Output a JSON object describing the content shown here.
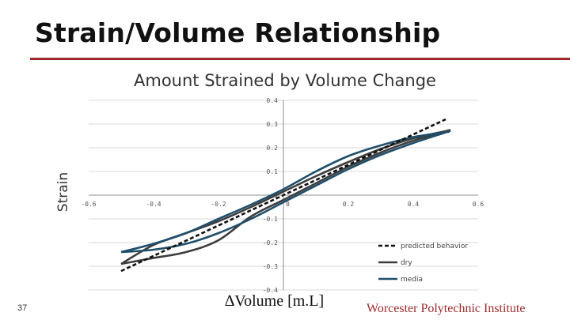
{
  "slide": {
    "title": "Strain/Volume Relationship",
    "page_number": "37",
    "footer": "Worcester Polytechnic Institute",
    "accent_color": "#9e2a2b"
  },
  "chart_data": {
    "type": "line",
    "title": "Amount Strained by Volume Change",
    "xlabel": "∆Volume [m.L]",
    "ylabel": "Strain",
    "xlim": [
      -0.6,
      0.6
    ],
    "ylim": [
      -0.4,
      0.4
    ],
    "x_ticks": [
      "-0.6",
      "-0.4",
      "-0.2",
      "0",
      "0.2",
      "0.4",
      "0.6"
    ],
    "y_ticks": [
      "0.4",
      "0.3",
      "0.2",
      "0.1",
      "0",
      "-0.1",
      "-0.2",
      "-0.3",
      "-0.4"
    ],
    "grid": "horizontal",
    "legend_position": "bottom-right",
    "series": [
      {
        "name": "predicted behavior",
        "color": "#111111",
        "dash": true,
        "x": [
          -0.5,
          0.5
        ],
        "y": [
          -0.32,
          0.32
        ]
      },
      {
        "name": "dry",
        "color": "#3d3d3d",
        "dash": false,
        "x": [
          -0.5,
          -0.4,
          -0.3,
          -0.2,
          -0.1,
          0.0,
          0.1,
          0.2,
          0.3,
          0.4,
          0.5,
          0.5,
          0.4,
          0.3,
          0.2,
          0.1,
          0.0,
          -0.1,
          -0.2,
          -0.3,
          -0.4,
          -0.5
        ],
        "y": [
          -0.29,
          -0.265,
          -0.24,
          -0.19,
          -0.09,
          -0.02,
          0.05,
          0.12,
          0.18,
          0.23,
          0.27,
          0.27,
          0.24,
          0.195,
          0.14,
          0.08,
          0.015,
          -0.05,
          -0.11,
          -0.16,
          -0.21,
          -0.29
        ]
      },
      {
        "name": "media",
        "color": "#1f4e6b",
        "dash": false,
        "x": [
          -0.5,
          -0.4,
          -0.3,
          -0.2,
          -0.1,
          0.0,
          0.1,
          0.2,
          0.3,
          0.4,
          0.5,
          0.5,
          0.4,
          0.3,
          0.2,
          0.1,
          0.0,
          -0.1,
          -0.2,
          -0.3,
          -0.4,
          -0.5
        ],
        "y": [
          -0.24,
          -0.23,
          -0.205,
          -0.16,
          -0.1,
          -0.03,
          0.04,
          0.11,
          0.17,
          0.22,
          0.265,
          0.265,
          0.245,
          0.21,
          0.165,
          0.1,
          0.025,
          -0.04,
          -0.1,
          -0.16,
          -0.205,
          -0.24
        ]
      }
    ]
  }
}
